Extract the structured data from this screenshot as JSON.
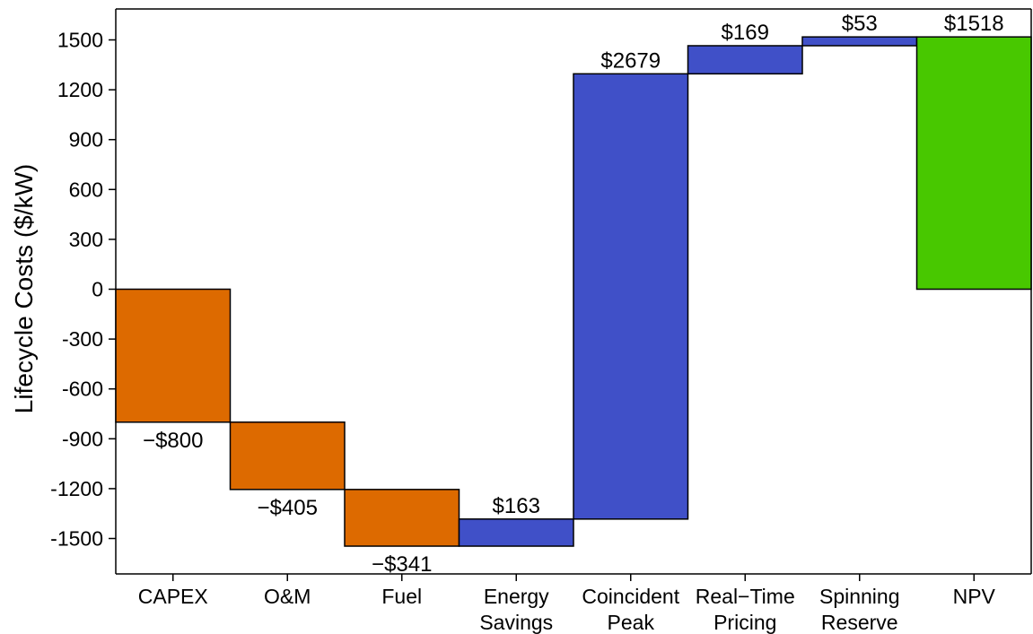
{
  "chart_data": {
    "type": "bar",
    "subtype": "waterfall",
    "ylabel": "Lifecycle Costs ($/kW)",
    "xlabel": "",
    "ylim": [
      -1700,
      1700
    ],
    "yticks": [
      1500,
      1200,
      900,
      600,
      300,
      0,
      -300,
      -600,
      -900,
      -1200,
      -1500
    ],
    "ytick_labels": [
      "1500",
      "1200",
      "900",
      "600",
      "300",
      "0",
      "-300",
      "-600",
      "-900",
      "-1200",
      "-1500"
    ],
    "grid": false,
    "legend": "none",
    "categories": [
      [
        "CAPEX"
      ],
      [
        "O&M"
      ],
      [
        "Fuel"
      ],
      [
        "Energy",
        "Savings"
      ],
      [
        "Coincident",
        "Peak"
      ],
      [
        "Real−Time",
        "Pricing"
      ],
      [
        "Spinning",
        "Reserve"
      ],
      [
        "NPV"
      ]
    ],
    "steps": [
      {
        "value": -800,
        "label": "−$800",
        "kind": "cost"
      },
      {
        "value": -405,
        "label": "−$405",
        "kind": "cost"
      },
      {
        "value": -341,
        "label": "−$341",
        "kind": "cost"
      },
      {
        "value": 163,
        "label": "$163",
        "kind": "benefit"
      },
      {
        "value": 2679,
        "label": "$2679",
        "kind": "benefit"
      },
      {
        "value": 169,
        "label": "$169",
        "kind": "benefit"
      },
      {
        "value": 53,
        "label": "$53",
        "kind": "benefit"
      },
      {
        "value": 1518,
        "label": "$1518",
        "kind": "total"
      }
    ],
    "colors": {
      "cost": "#DD6A00",
      "benefit": "#4050C8",
      "total": "#48C800"
    }
  }
}
